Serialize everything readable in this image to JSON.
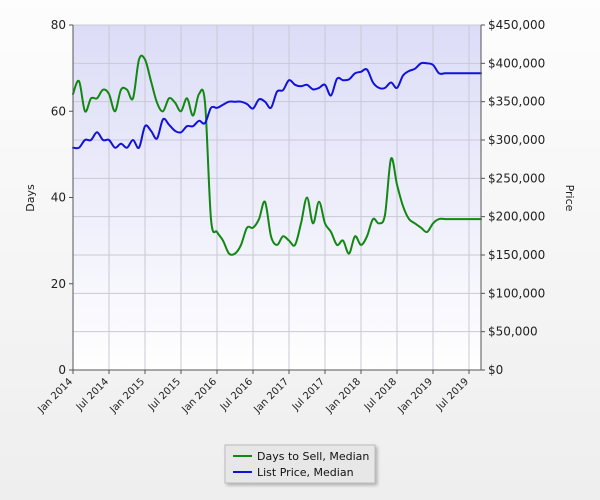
{
  "chart_data": {
    "type": "line",
    "title": "",
    "xlabel": "",
    "y_left_label": "Days",
    "y_right_label": "Price",
    "y_left_lim": [
      0,
      80
    ],
    "y_right_lim": [
      0,
      450000
    ],
    "y_left_ticks": [
      "0",
      "20",
      "40",
      "60",
      "80"
    ],
    "y_right_ticks": [
      "$0",
      "$50,000",
      "$100,000",
      "$150,000",
      "$200,000",
      "$250,000",
      "$300,000",
      "$350,000",
      "$400,000",
      "$450,000"
    ],
    "x_ticks": [
      "Jan 2014",
      "Jul 2014",
      "Jan 2015",
      "Jul 2015",
      "Jan 2016",
      "Jul 2016",
      "Jan 2017",
      "Jul 2017",
      "Jan 2018",
      "Jul 2018",
      "Jan 2019",
      "Jul 2019"
    ],
    "grid": true,
    "legend_position": "bottom-center",
    "series": [
      {
        "name": "Days to Sell, Median",
        "color": "#118811",
        "axis": "left",
        "x": [
          "2014-01",
          "2014-02",
          "2014-03",
          "2014-04",
          "2014-05",
          "2014-06",
          "2014-07",
          "2014-08",
          "2014-09",
          "2014-10",
          "2014-11",
          "2014-12",
          "2015-01",
          "2015-02",
          "2015-03",
          "2015-04",
          "2015-05",
          "2015-06",
          "2015-07",
          "2015-08",
          "2015-09",
          "2015-10",
          "2015-11",
          "2015-12",
          "2016-01",
          "2016-02",
          "2016-03",
          "2016-04",
          "2016-05",
          "2016-06",
          "2016-07",
          "2016-08",
          "2016-09",
          "2016-10",
          "2016-11",
          "2016-12",
          "2017-01",
          "2017-02",
          "2017-03",
          "2017-04",
          "2017-05",
          "2017-06",
          "2017-07",
          "2017-08",
          "2017-09",
          "2017-10",
          "2017-11",
          "2017-12",
          "2018-01",
          "2018-02",
          "2018-03",
          "2018-04",
          "2018-05",
          "2018-06",
          "2018-07",
          "2018-08",
          "2018-09",
          "2018-10",
          "2018-11",
          "2018-12",
          "2019-01",
          "2019-02",
          "2019-03",
          "2019-04",
          "2019-05",
          "2019-06",
          "2019-07",
          "2019-08",
          "2019-09"
        ],
        "values": [
          64,
          67,
          60,
          63,
          63,
          65,
          64,
          60,
          65,
          65,
          63,
          72,
          72,
          67,
          62,
          60,
          63,
          62,
          60,
          63,
          59,
          64,
          62,
          35,
          32,
          30,
          27,
          27,
          29,
          33,
          33,
          35,
          39,
          31,
          29,
          31,
          30,
          29,
          34,
          40,
          34,
          39,
          34,
          32,
          29,
          30,
          27,
          31,
          29,
          31,
          35,
          34,
          36,
          49,
          43,
          38,
          35,
          34,
          33,
          32,
          34,
          35,
          35,
          35,
          35,
          35,
          35,
          35,
          35
        ],
        "_note": ""
      },
      {
        "name": "List Price, Median",
        "color": "#1111dd",
        "axis": "right",
        "x": [
          "2014-01",
          "2014-02",
          "2014-03",
          "2014-04",
          "2014-05",
          "2014-06",
          "2014-07",
          "2014-08",
          "2014-09",
          "2014-10",
          "2014-11",
          "2014-12",
          "2015-01",
          "2015-02",
          "2015-03",
          "2015-04",
          "2015-05",
          "2015-06",
          "2015-07",
          "2015-08",
          "2015-09",
          "2015-10",
          "2015-11",
          "2015-12",
          "2016-01",
          "2016-02",
          "2016-03",
          "2016-04",
          "2016-05",
          "2016-06",
          "2016-07",
          "2016-08",
          "2016-09",
          "2016-10",
          "2016-11",
          "2016-12",
          "2017-01",
          "2017-02",
          "2017-03",
          "2017-04",
          "2017-05",
          "2017-06",
          "2017-07",
          "2017-08",
          "2017-09",
          "2017-10",
          "2017-11",
          "2017-12",
          "2018-01",
          "2018-02",
          "2018-03",
          "2018-04",
          "2018-05",
          "2018-06",
          "2018-07",
          "2018-08",
          "2018-09",
          "2018-10",
          "2018-11",
          "2018-12",
          "2019-01",
          "2019-02",
          "2019-03",
          "2019-04",
          "2019-05",
          "2019-06",
          "2019-07",
          "2019-08",
          "2019-09"
        ],
        "values": [
          290000,
          290000,
          300000,
          300000,
          310000,
          300000,
          300000,
          290000,
          295000,
          290000,
          300000,
          290000,
          318000,
          312000,
          302000,
          327000,
          320000,
          312000,
          310000,
          318000,
          318000,
          325000,
          322000,
          342000,
          342000,
          346000,
          350000,
          350000,
          350000,
          347000,
          341000,
          353000,
          350000,
          342000,
          363000,
          365000,
          378000,
          372000,
          370000,
          372000,
          366000,
          368000,
          372000,
          358000,
          380000,
          378000,
          379000,
          387000,
          389000,
          392000,
          375000,
          368000,
          368000,
          375000,
          368000,
          384000,
          390000,
          393000,
          400000,
          400000,
          398000,
          387000,
          387000,
          387000,
          387000,
          387000,
          387000,
          387000,
          387000
        ]
      }
    ]
  },
  "legend": {
    "items": [
      {
        "label": "Days to Sell, Median",
        "color": "#118811"
      },
      {
        "label": "List Price, Median",
        "color": "#1111dd"
      }
    ]
  }
}
